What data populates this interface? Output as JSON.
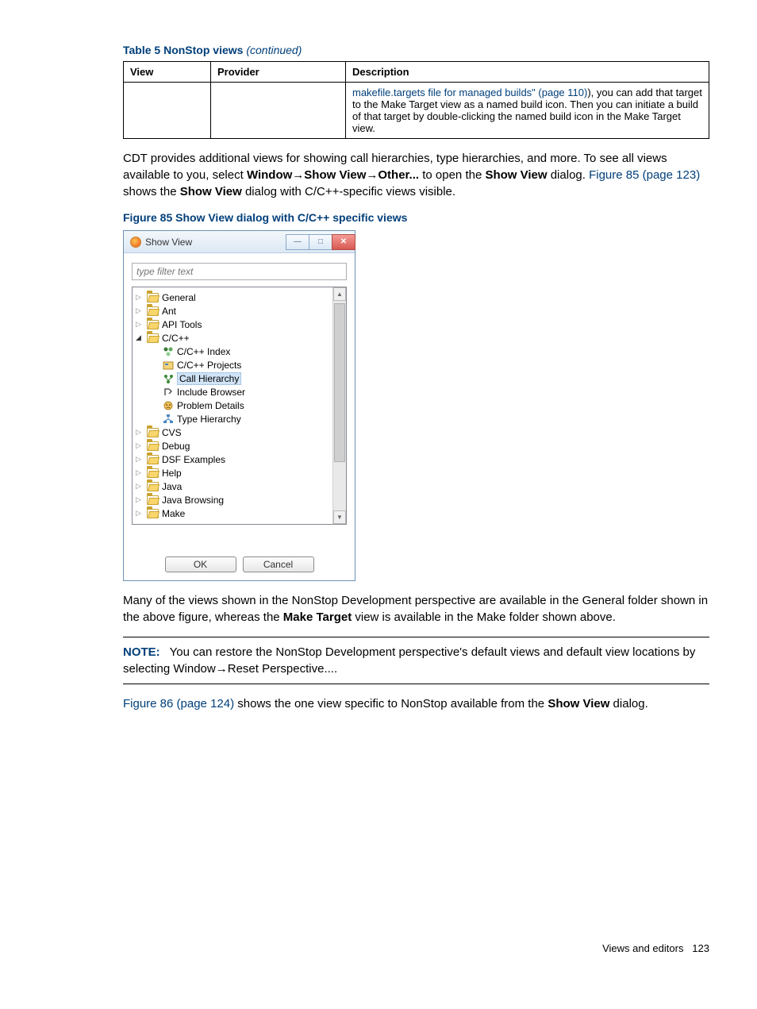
{
  "table": {
    "caption_bold": "Table 5 NonStop views ",
    "caption_italic": "(continued)",
    "headers": [
      "View",
      "Provider",
      "Description"
    ],
    "row": {
      "view": "",
      "provider": "",
      "desc_prefix": "makefile.targets file for managed builds\" (page 110)",
      "desc_rest": "), you can add that target to the Make Target view as a named build icon. Then you can initiate a build of that target by double-clicking the named build icon in the Make Target view."
    }
  },
  "para1": {
    "t1": "CDT provides additional views for showing call hierarchies, type hierarchies, and more. To see all views available to you, select ",
    "b1": "Window",
    "a1": "→",
    "b2": "Show View",
    "a2": "→",
    "b3": "Other...",
    "t2": " to open the ",
    "b4": "Show View",
    "t3": " dialog. ",
    "link": "Figure 85 (page 123)",
    "t4": " shows the ",
    "b5": "Show View",
    "t5": " dialog with C/C++-specific views visible."
  },
  "figure_caption": "Figure 85 Show View dialog with C/C++ specific views",
  "dialog": {
    "title": "Show View",
    "filter_placeholder": "type filter text",
    "ok": "OK",
    "cancel": "Cancel",
    "items": [
      {
        "type": "folder",
        "expanded": false,
        "label": "General"
      },
      {
        "type": "folder",
        "expanded": false,
        "label": "Ant"
      },
      {
        "type": "folder",
        "expanded": false,
        "label": "API Tools"
      },
      {
        "type": "folder",
        "expanded": true,
        "label": "C/C++"
      },
      {
        "type": "leaf",
        "icon": "index",
        "label": "C/C++ Index"
      },
      {
        "type": "leaf",
        "icon": "projects",
        "label": "C/C++ Projects"
      },
      {
        "type": "leaf",
        "icon": "call",
        "label": "Call Hierarchy",
        "selected": true
      },
      {
        "type": "leaf",
        "icon": "include",
        "label": "Include Browser"
      },
      {
        "type": "leaf",
        "icon": "problem",
        "label": "Problem Details"
      },
      {
        "type": "leaf",
        "icon": "type",
        "label": "Type Hierarchy"
      },
      {
        "type": "folder",
        "expanded": false,
        "label": "CVS"
      },
      {
        "type": "folder",
        "expanded": false,
        "label": "Debug"
      },
      {
        "type": "folder",
        "expanded": false,
        "label": "DSF Examples"
      },
      {
        "type": "folder",
        "expanded": false,
        "label": "Help"
      },
      {
        "type": "folder",
        "expanded": false,
        "label": "Java"
      },
      {
        "type": "folder",
        "expanded": false,
        "label": "Java Browsing"
      },
      {
        "type": "folder",
        "expanded": false,
        "label": "Make"
      }
    ]
  },
  "para2": {
    "t1": "Many of the views shown in the NonStop Development perspective are available in the General folder shown in the above figure, whereas the ",
    "b1": "Make Target",
    "t2": " view is available in the Make folder shown above."
  },
  "note": {
    "label": "NOTE:",
    "t1": "You can restore the NonStop Development perspective's default views and default view locations by selecting ",
    "b1": "Window",
    "a1": "→",
    "b2": "Reset Perspective...",
    "t2": "."
  },
  "para3": {
    "link": "Figure 86 (page 124)",
    "t1": " shows the one view specific to NonStop available from the ",
    "b1": "Show View",
    "t2": " dialog."
  },
  "footer": {
    "text": "Views and editors",
    "page": "123"
  },
  "colors": {
    "brand": "#003f7a"
  }
}
